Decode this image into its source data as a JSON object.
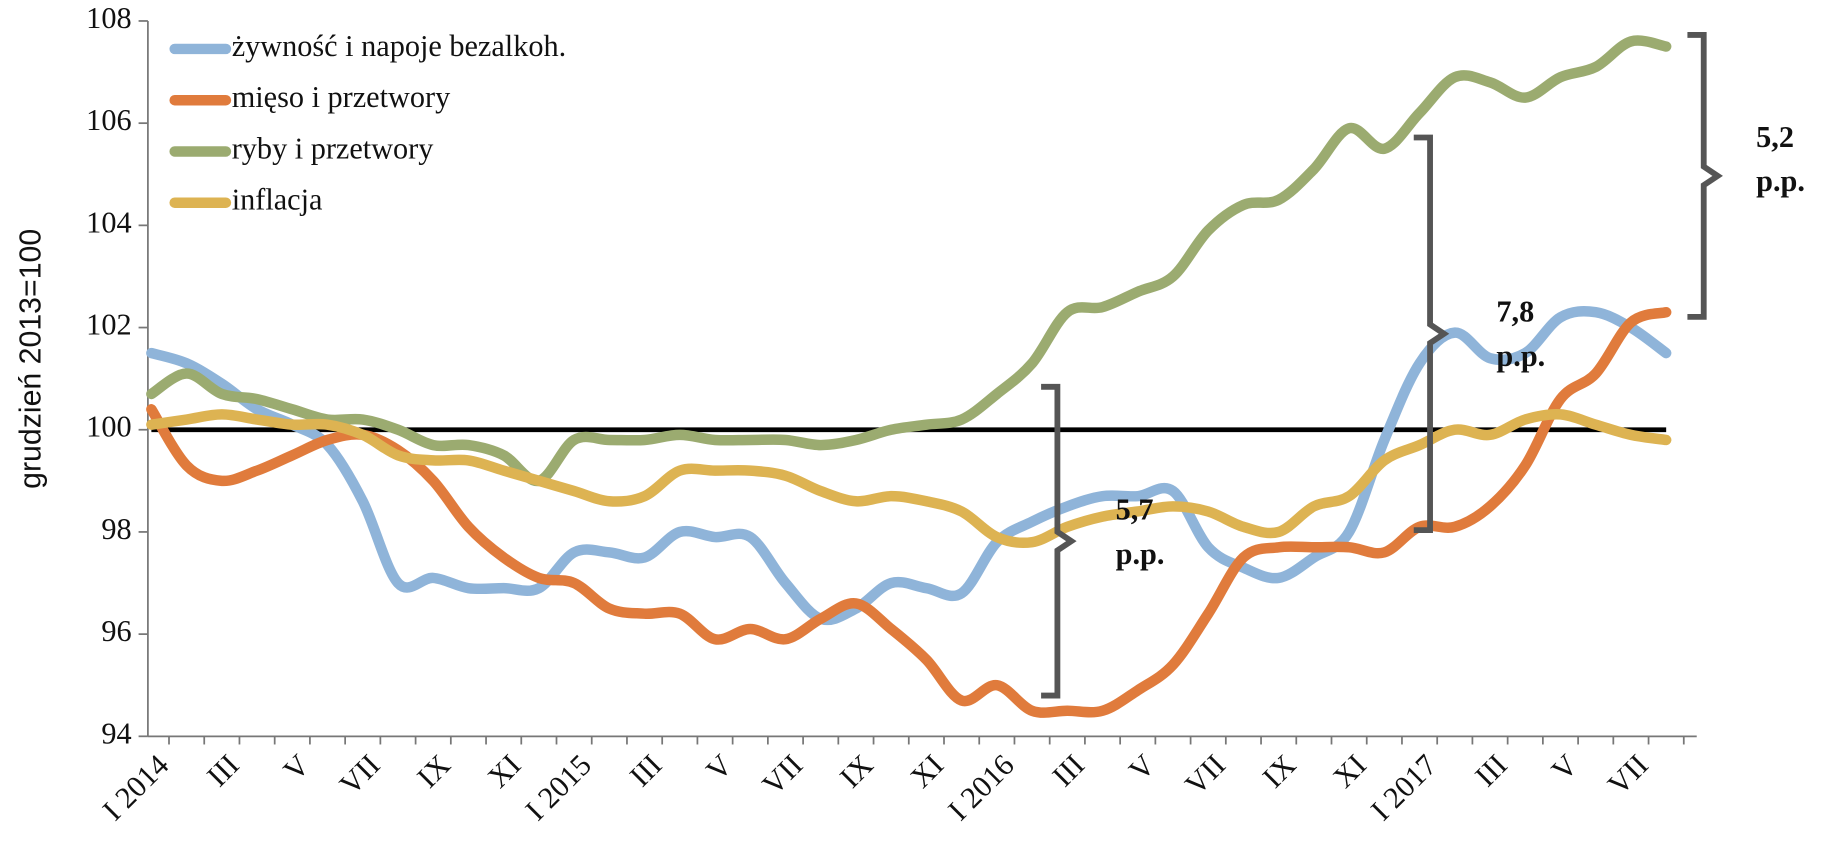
{
  "chart_data": {
    "type": "line",
    "y_label": "grudzień 2013=100",
    "categories": [
      "I 2014",
      null,
      "III",
      null,
      "V",
      null,
      "VII",
      null,
      "IX",
      null,
      "XI",
      null,
      "I 2015",
      null,
      "III",
      null,
      "V",
      null,
      "VII",
      null,
      "IX",
      null,
      "XI",
      null,
      "I 2016",
      null,
      "III",
      null,
      "V",
      null,
      "VII",
      null,
      "IX",
      null,
      "XI",
      null,
      "I 2017",
      null,
      "III",
      null,
      "V",
      null,
      "VII",
      null
    ],
    "ylim": [
      94,
      108
    ],
    "yticks": [
      94,
      96,
      98,
      100,
      102,
      104,
      106,
      108
    ],
    "reference_line": 100,
    "legend": "top-left",
    "series": [
      {
        "name": "żywność i napoje bezalkoh.",
        "color": "#8fb4d9",
        "values": [
          101.5,
          101.3,
          100.9,
          100.4,
          100.1,
          99.7,
          98.6,
          97.0,
          97.1,
          96.9,
          96.9,
          96.9,
          97.6,
          97.6,
          97.5,
          98.0,
          97.9,
          97.9,
          97.0,
          96.3,
          96.5,
          97.0,
          96.9,
          96.8,
          97.8,
          98.2,
          98.5,
          98.7,
          98.7,
          98.8,
          97.7,
          97.3,
          97.1,
          97.5,
          98.0,
          99.8,
          101.3,
          101.9,
          101.4,
          101.5,
          102.2,
          102.3,
          102.0,
          101.5
        ]
      },
      {
        "name": "mięso i przetwory",
        "color": "#e07b3c",
        "values": [
          100.4,
          99.3,
          99.0,
          99.2,
          99.5,
          99.8,
          99.9,
          99.6,
          99.0,
          98.1,
          97.5,
          97.1,
          97.0,
          96.5,
          96.4,
          96.4,
          95.9,
          96.1,
          95.9,
          96.3,
          96.6,
          96.1,
          95.5,
          94.7,
          95.0,
          94.5,
          94.5,
          94.5,
          94.9,
          95.4,
          96.4,
          97.5,
          97.7,
          97.7,
          97.7,
          97.6,
          98.1,
          98.1,
          98.5,
          99.3,
          100.6,
          101.1,
          102.1,
          102.3
        ]
      },
      {
        "name": "ryby i przetwory",
        "color": "#9bab70",
        "values": [
          100.7,
          101.1,
          100.7,
          100.6,
          100.4,
          100.2,
          100.2,
          100.0,
          99.7,
          99.7,
          99.5,
          99.0,
          99.8,
          99.8,
          99.8,
          99.9,
          99.8,
          99.8,
          99.8,
          99.7,
          99.8,
          100.0,
          100.1,
          100.2,
          100.7,
          101.3,
          102.3,
          102.4,
          102.7,
          103.0,
          103.9,
          104.4,
          104.5,
          105.1,
          105.9,
          105.5,
          106.2,
          106.9,
          106.8,
          106.5,
          106.9,
          107.1,
          107.6,
          107.5
        ]
      },
      {
        "name": "inflacja",
        "color": "#ddb352",
        "values": [
          100.1,
          100.2,
          100.3,
          100.2,
          100.1,
          100.1,
          99.9,
          99.5,
          99.4,
          99.4,
          99.2,
          99.0,
          98.8,
          98.6,
          98.7,
          99.2,
          99.2,
          99.2,
          99.1,
          98.8,
          98.6,
          98.7,
          98.6,
          98.4,
          97.9,
          97.8,
          98.1,
          98.3,
          98.4,
          98.5,
          98.4,
          98.1,
          98.0,
          98.5,
          98.7,
          99.4,
          99.7,
          100.0,
          99.9,
          100.2,
          100.3,
          100.1,
          99.9,
          99.8
        ]
      }
    ],
    "annotations": [
      {
        "lines": [
          "5,7",
          "p.p."
        ]
      },
      {
        "lines": [
          "7,8",
          "p.p."
        ]
      },
      {
        "lines": [
          "5,2",
          "p.p."
        ]
      }
    ]
  }
}
